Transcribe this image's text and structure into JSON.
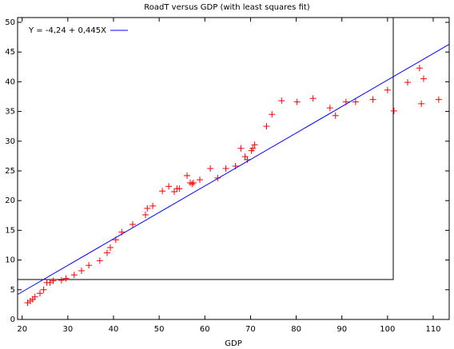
{
  "chart_data": {
    "type": "scatter",
    "title": "RoadT versus GDP (with least squares fit)",
    "x_label": "GDP",
    "xlim": [
      19,
      113.5
    ],
    "ylim": [
      0,
      50.8
    ],
    "xticks": [
      20,
      30,
      40,
      50,
      60,
      70,
      80,
      90,
      100,
      110
    ],
    "yticks": [
      0,
      5,
      10,
      15,
      20,
      25,
      30,
      35,
      40,
      45,
      50
    ],
    "grid": false,
    "legend": "top-left",
    "series": [
      {
        "color": "#ff0000",
        "x": [
          21.2,
          21.8,
          22.3,
          22.8,
          23.9,
          24.7,
          25.4,
          26.1,
          26.8,
          28.6,
          29.6,
          31.4,
          33.0,
          34.6,
          37.0,
          38.6,
          39.3,
          40.5,
          41.8,
          44.2,
          47.0,
          47.4,
          48.6,
          50.7,
          52.1,
          53.3,
          53.9,
          54.4,
          56.1,
          56.8,
          57.2,
          57.5,
          58.9,
          61.2,
          62.8,
          64.6,
          66.7,
          67.9,
          68.8,
          69.3,
          70.2,
          70.5,
          70.9,
          73.5,
          74.7,
          76.8,
          80.2,
          83.7,
          87.4,
          88.6,
          90.9,
          93.0,
          96.8,
          100.0,
          101.4,
          104.4,
          107.0,
          107.4,
          107.9,
          111.2
        ],
        "values": [
          2.8,
          3.1,
          3.4,
          3.8,
          4.4,
          5.0,
          6.2,
          6.2,
          6.5,
          6.6,
          6.9,
          7.5,
          8.2,
          9.1,
          9.9,
          11.2,
          12.1,
          13.4,
          14.7,
          16.0,
          17.6,
          18.7,
          19.1,
          21.6,
          22.4,
          21.5,
          22.0,
          22.0,
          24.2,
          23.0,
          22.8,
          23.0,
          23.5,
          25.4,
          23.8,
          25.4,
          25.8,
          28.8,
          27.4,
          26.9,
          28.4,
          28.8,
          29.4,
          32.5,
          34.5,
          36.8,
          36.6,
          37.2,
          35.6,
          34.3,
          36.6,
          36.6,
          37.0,
          38.6,
          35.1,
          39.9,
          42.3,
          36.3,
          40.5,
          37.0
        ]
      },
      {
        "name": "Y = -4,24 + 0,445X",
        "type": "line",
        "color": "#0000ff",
        "x": [
          19,
          113.5
        ],
        "values": [
          4.2,
          46.3
        ]
      }
    ]
  }
}
